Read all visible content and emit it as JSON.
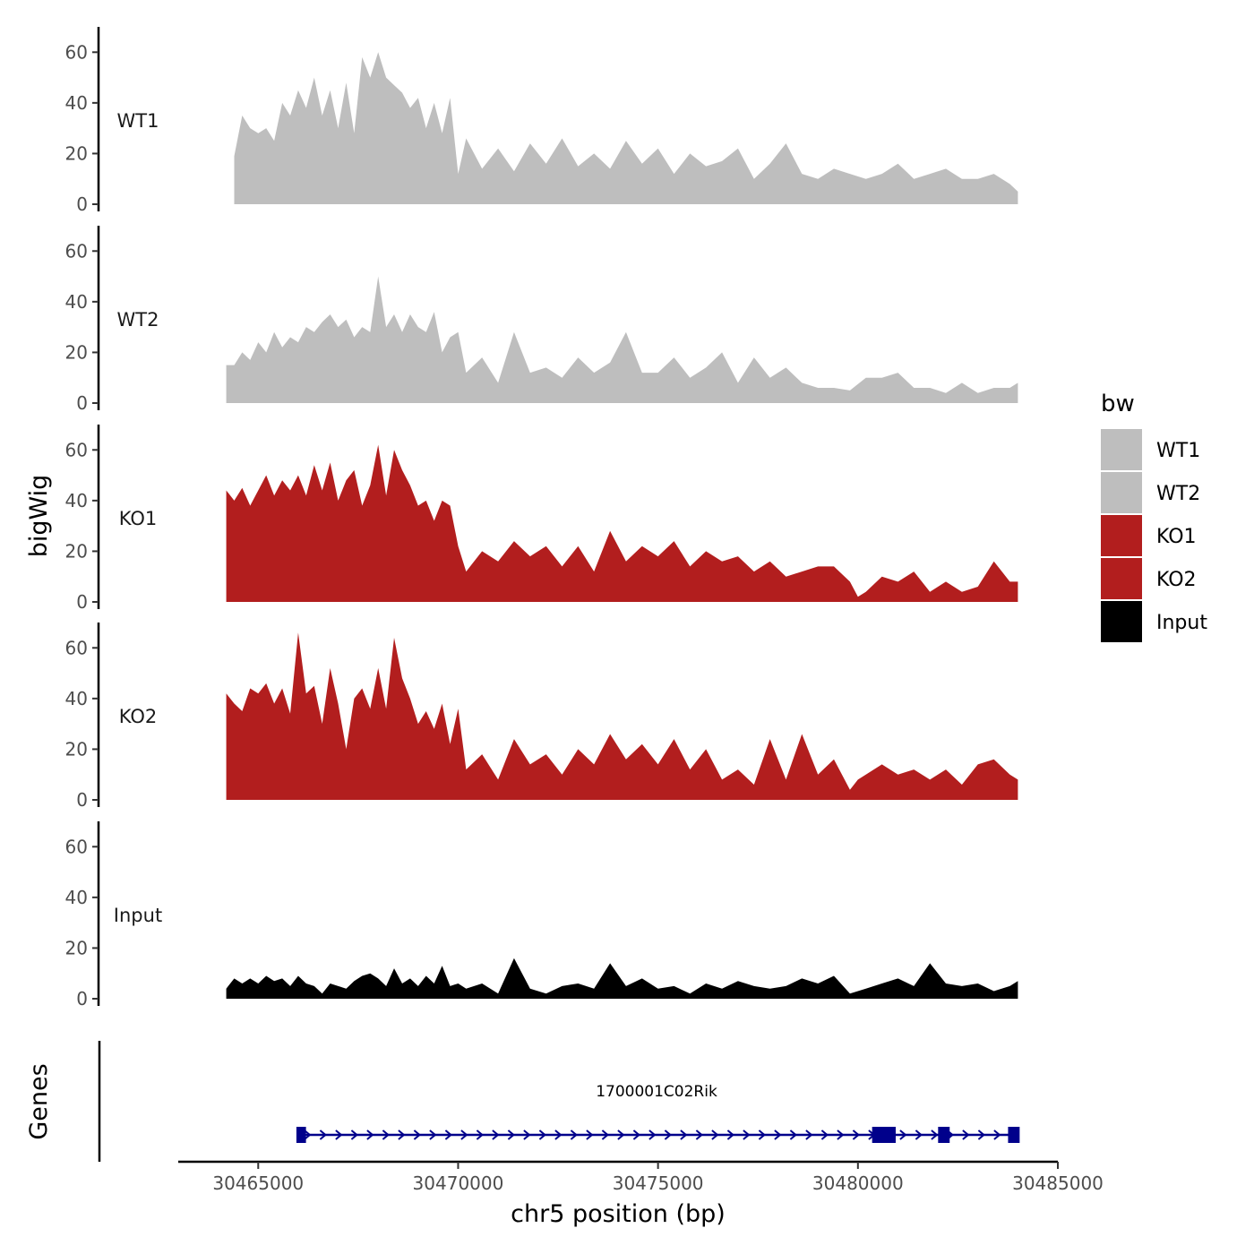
{
  "chart_data": {
    "type": "area",
    "ylabel": "bigWig",
    "xlabel": "chr5 position (bp)",
    "ylim": [
      0,
      70
    ],
    "y_ticks": [
      "0",
      "20",
      "40",
      "60"
    ],
    "x_range": [
      30463000,
      30485000
    ],
    "x_ticks": [
      "30465000",
      "30470000",
      "30475000",
      "30480000",
      "30485000"
    ],
    "genes_label": "Genes",
    "colors": {
      "WT": "#bebebe",
      "KO": "#b21e1e",
      "Input": "#000000",
      "gene": "#00008b"
    },
    "legend": {
      "title": "bw",
      "entries": [
        {
          "name": "WT1",
          "color": "#bebebe"
        },
        {
          "name": "WT2",
          "color": "#bebebe"
        },
        {
          "name": "KO1",
          "color": "#b21e1e"
        },
        {
          "name": "KO2",
          "color": "#b21e1e"
        },
        {
          "name": "Input",
          "color": "#000000"
        }
      ]
    },
    "tracks": [
      {
        "name": "WT1",
        "color": "#bebebe",
        "x": [
          30464400,
          30464600,
          30464800,
          30465000,
          30465200,
          30465400,
          30465600,
          30465800,
          30466000,
          30466200,
          30466400,
          30466600,
          30466800,
          30467000,
          30467200,
          30467400,
          30467600,
          30467800,
          30468000,
          30468200,
          30468400,
          30468600,
          30468800,
          30469000,
          30469200,
          30469400,
          30469600,
          30469800,
          30470000,
          30470200,
          30470600,
          30471000,
          30471400,
          30471800,
          30472200,
          30472600,
          30473000,
          30473400,
          30473800,
          30474200,
          30474600,
          30475000,
          30475400,
          30475800,
          30476200,
          30476600,
          30477000,
          30477400,
          30477800,
          30478200,
          30478600,
          30479000,
          30479400,
          30479800,
          30480200,
          30480600,
          30481000,
          30481400,
          30481800,
          30482200,
          30482600,
          30483000,
          30483400,
          30483800,
          30484000
        ],
        "values": [
          19,
          35,
          30,
          28,
          30,
          25,
          40,
          35,
          45,
          38,
          50,
          35,
          45,
          30,
          48,
          28,
          58,
          50,
          60,
          50,
          47,
          44,
          38,
          42,
          30,
          40,
          28,
          42,
          12,
          26,
          14,
          22,
          13,
          24,
          16,
          26,
          15,
          20,
          14,
          25,
          16,
          22,
          12,
          20,
          15,
          17,
          22,
          10,
          16,
          24,
          12,
          10,
          14,
          12,
          10,
          12,
          16,
          10,
          12,
          14,
          10,
          10,
          12,
          8,
          5
        ]
      },
      {
        "name": "WT2",
        "color": "#bebebe",
        "x": [
          30464200,
          30464400,
          30464600,
          30464800,
          30465000,
          30465200,
          30465400,
          30465600,
          30465800,
          30466000,
          30466200,
          30466400,
          30466600,
          30466800,
          30467000,
          30467200,
          30467400,
          30467600,
          30467800,
          30468000,
          30468200,
          30468400,
          30468600,
          30468800,
          30469000,
          30469200,
          30469400,
          30469600,
          30469800,
          30470000,
          30470200,
          30470600,
          30471000,
          30471400,
          30471800,
          30472200,
          30472600,
          30473000,
          30473400,
          30473800,
          30474200,
          30474600,
          30475000,
          30475400,
          30475800,
          30476200,
          30476600,
          30477000,
          30477400,
          30477800,
          30478200,
          30478600,
          30479000,
          30479400,
          30479800,
          30480200,
          30480600,
          30481000,
          30481400,
          30481800,
          30482200,
          30482600,
          30483000,
          30483400,
          30483800,
          30484000
        ],
        "values": [
          15,
          15,
          20,
          17,
          24,
          20,
          28,
          22,
          26,
          24,
          30,
          28,
          32,
          35,
          30,
          33,
          26,
          30,
          28,
          50,
          30,
          35,
          28,
          35,
          30,
          28,
          36,
          20,
          26,
          28,
          12,
          18,
          8,
          28,
          12,
          14,
          10,
          18,
          12,
          16,
          28,
          12,
          12,
          18,
          10,
          14,
          20,
          8,
          18,
          10,
          14,
          8,
          6,
          6,
          5,
          10,
          10,
          12,
          6,
          6,
          4,
          8,
          4,
          6,
          6,
          8
        ]
      },
      {
        "name": "KO1",
        "color": "#b21e1e",
        "x": [
          30464200,
          30464400,
          30464600,
          30464800,
          30465000,
          30465200,
          30465400,
          30465600,
          30465800,
          30466000,
          30466200,
          30466400,
          30466600,
          30466800,
          30467000,
          30467200,
          30467400,
          30467600,
          30467800,
          30468000,
          30468200,
          30468400,
          30468600,
          30468800,
          30469000,
          30469200,
          30469400,
          30469600,
          30469800,
          30470000,
          30470200,
          30470600,
          30471000,
          30471400,
          30471800,
          30472200,
          30472600,
          30473000,
          30473400,
          30473800,
          30474200,
          30474600,
          30475000,
          30475400,
          30475800,
          30476200,
          30476600,
          30477000,
          30477400,
          30477800,
          30478200,
          30478600,
          30479000,
          30479400,
          30479800,
          30480000,
          30480200,
          30480600,
          30481000,
          30481400,
          30481800,
          30482200,
          30482600,
          30483000,
          30483400,
          30483800,
          30484000
        ],
        "values": [
          44,
          40,
          45,
          38,
          44,
          50,
          42,
          48,
          44,
          50,
          42,
          54,
          44,
          55,
          40,
          48,
          52,
          38,
          46,
          62,
          42,
          60,
          52,
          46,
          38,
          40,
          32,
          40,
          38,
          22,
          12,
          20,
          16,
          24,
          18,
          22,
          14,
          22,
          12,
          28,
          16,
          22,
          18,
          24,
          14,
          20,
          16,
          18,
          12,
          16,
          10,
          12,
          14,
          14,
          8,
          2,
          4,
          10,
          8,
          12,
          4,
          8,
          4,
          6,
          16,
          8,
          8
        ]
      },
      {
        "name": "KO2",
        "color": "#b21e1e",
        "x": [
          30464200,
          30464400,
          30464600,
          30464800,
          30465000,
          30465200,
          30465400,
          30465600,
          30465800,
          30466000,
          30466200,
          30466400,
          30466600,
          30466800,
          30467000,
          30467200,
          30467400,
          30467600,
          30467800,
          30468000,
          30468200,
          30468400,
          30468600,
          30468800,
          30469000,
          30469200,
          30469400,
          30469600,
          30469800,
          30470000,
          30470200,
          30470600,
          30471000,
          30471400,
          30471800,
          30472200,
          30472600,
          30473000,
          30473400,
          30473800,
          30474200,
          30474600,
          30475000,
          30475400,
          30475800,
          30476200,
          30476600,
          30477000,
          30477400,
          30477800,
          30478200,
          30478600,
          30479000,
          30479400,
          30479800,
          30480000,
          30480200,
          30480600,
          30481000,
          30481400,
          30481800,
          30482200,
          30482600,
          30483000,
          30483400,
          30483800,
          30484000
        ],
        "values": [
          42,
          38,
          35,
          44,
          42,
          46,
          38,
          44,
          34,
          66,
          42,
          45,
          30,
          52,
          38,
          20,
          40,
          44,
          36,
          52,
          36,
          64,
          48,
          40,
          30,
          35,
          28,
          38,
          22,
          36,
          12,
          18,
          8,
          24,
          14,
          18,
          10,
          20,
          14,
          26,
          16,
          22,
          14,
          24,
          12,
          20,
          8,
          12,
          6,
          24,
          8,
          26,
          10,
          16,
          4,
          8,
          10,
          14,
          10,
          12,
          8,
          12,
          6,
          14,
          16,
          10,
          8
        ]
      },
      {
        "name": "Input",
        "color": "#000000",
        "x": [
          30464200,
          30464400,
          30464600,
          30464800,
          30465000,
          30465200,
          30465400,
          30465600,
          30465800,
          30466000,
          30466200,
          30466400,
          30466600,
          30466800,
          30467000,
          30467200,
          30467400,
          30467600,
          30467800,
          30468000,
          30468200,
          30468400,
          30468600,
          30468800,
          30469000,
          30469200,
          30469400,
          30469600,
          30469800,
          30470000,
          30470200,
          30470600,
          30471000,
          30471400,
          30471800,
          30472200,
          30472600,
          30473000,
          30473400,
          30473800,
          30474200,
          30474600,
          30475000,
          30475400,
          30475800,
          30476200,
          30476600,
          30477000,
          30477400,
          30477800,
          30478200,
          30478600,
          30479000,
          30479400,
          30479800,
          30480200,
          30480600,
          30481000,
          30481400,
          30481800,
          30482200,
          30482600,
          30483000,
          30483400,
          30483800,
          30484000
        ],
        "values": [
          4,
          8,
          6,
          8,
          6,
          9,
          7,
          8,
          5,
          9,
          6,
          5,
          2,
          6,
          5,
          4,
          7,
          9,
          10,
          8,
          5,
          12,
          6,
          8,
          5,
          9,
          6,
          13,
          5,
          6,
          4,
          6,
          2,
          16,
          4,
          2,
          5,
          6,
          4,
          14,
          5,
          8,
          4,
          5,
          2,
          6,
          4,
          7,
          5,
          4,
          5,
          8,
          6,
          9,
          2,
          4,
          6,
          8,
          5,
          14,
          6,
          5,
          6,
          3,
          5,
          7
        ]
      }
    ],
    "gene": {
      "name": "1700001C02Rik",
      "strand": "+",
      "start": 30466000,
      "end": 30484000,
      "exons": [
        [
          30466000,
          30466150
        ],
        [
          30480400,
          30480900
        ],
        [
          30482050,
          30482250
        ],
        [
          30483800,
          30484000
        ]
      ]
    }
  }
}
